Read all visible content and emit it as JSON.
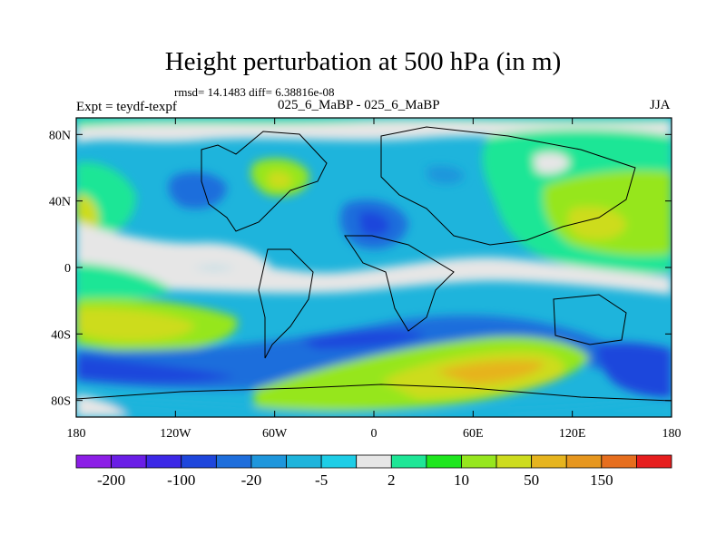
{
  "title": "Height perturbation at 500 hPa (in m)",
  "stats": "rmsd= 14.1483  diff= 6.38816e-08",
  "left_label": "Expt = teydf-texpf",
  "center_label": "025_6_MaBP - 025_6_MaBP",
  "right_label": "JJA",
  "map": {
    "lon_range": [
      -180,
      180
    ],
    "lat_range": [
      -90,
      90
    ],
    "x_ticks": [
      {
        "value": -180,
        "label": "180"
      },
      {
        "value": -120,
        "label": "120W"
      },
      {
        "value": -60,
        "label": "60W"
      },
      {
        "value": 0,
        "label": "0"
      },
      {
        "value": 60,
        "label": "60E"
      },
      {
        "value": 120,
        "label": "120E"
      },
      {
        "value": 180,
        "label": "180"
      }
    ],
    "y_ticks": [
      {
        "value": 80,
        "label": "80N"
      },
      {
        "value": 40,
        "label": "40N"
      },
      {
        "value": 0,
        "label": "0"
      },
      {
        "value": -40,
        "label": "40S"
      },
      {
        "value": -80,
        "label": "80S"
      }
    ]
  },
  "colorbar": {
    "colors": [
      "#8c1ee6",
      "#6a1ee6",
      "#3c28e6",
      "#1e46dc",
      "#1e6edc",
      "#1e96dc",
      "#1eb4dc",
      "#1ecde6",
      "#e6e6e6",
      "#1ee696",
      "#1ee61e",
      "#96e61e",
      "#cddc1e",
      "#e6b41e",
      "#e6961e",
      "#e66e1e",
      "#e61e1e"
    ],
    "labels": [
      {
        "boundary": 1,
        "label": "-200"
      },
      {
        "boundary": 3,
        "label": "-100"
      },
      {
        "boundary": 5,
        "label": "-20"
      },
      {
        "boundary": 7,
        "label": "-5"
      },
      {
        "boundary": 9,
        "label": "2"
      },
      {
        "boundary": 11,
        "label": "10"
      },
      {
        "boundary": 13,
        "label": "50"
      },
      {
        "boundary": 15,
        "label": "150"
      }
    ]
  }
}
